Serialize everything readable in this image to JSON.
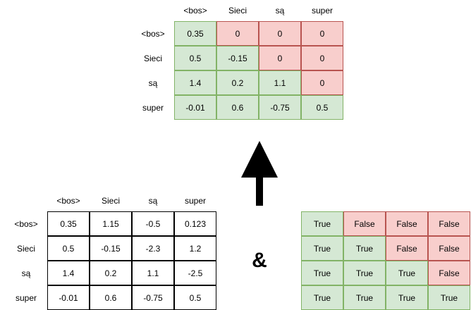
{
  "tokens": [
    "<bos>",
    "Sieci",
    "są",
    "super"
  ],
  "result_matrix": {
    "values": [
      [
        "0.35",
        "0",
        "0",
        "0"
      ],
      [
        "0.5",
        "-0.15",
        "0",
        "0"
      ],
      [
        "1.4",
        "0.2",
        "1.1",
        "0"
      ],
      [
        "-0.01",
        "0.6",
        "-0.75",
        "0.5"
      ]
    ]
  },
  "input_matrix": {
    "values": [
      [
        "0.35",
        "1.15",
        "-0.5",
        "0.123"
      ],
      [
        "0.5",
        "-0.15",
        "-2.3",
        "1.2"
      ],
      [
        "1.4",
        "0.2",
        "1.1",
        "-2.5"
      ],
      [
        "-0.01",
        "0.6",
        "-0.75",
        "0.5"
      ]
    ]
  },
  "mask_matrix": {
    "values": [
      [
        "True",
        "False",
        "False",
        "False"
      ],
      [
        "True",
        "True",
        "False",
        "False"
      ],
      [
        "True",
        "True",
        "True",
        "False"
      ],
      [
        "True",
        "True",
        "True",
        "True"
      ]
    ]
  },
  "operator_symbol": "&",
  "colors": {
    "keep_fill": "#d5e8d4",
    "keep_stroke": "#82b366",
    "masked_fill": "#f8cecc",
    "masked_stroke": "#b85450",
    "plain_stroke": "#000000",
    "arrow": "#000000"
  }
}
